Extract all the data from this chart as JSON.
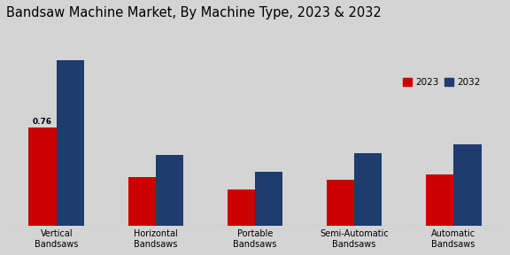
{
  "title": "Bandsaw Machine Market, By Machine Type, 2023 & 2032",
  "categories": [
    "Vertical\nBandsaws",
    "Horizontal\nBandsaws",
    "Portable\nBandsaws",
    "Semi-Automatic\nBandsaws",
    "Automatic\nBandsaws"
  ],
  "values_2023": [
    0.76,
    0.38,
    0.28,
    0.36,
    0.4
  ],
  "values_2032": [
    1.28,
    0.55,
    0.42,
    0.56,
    0.63
  ],
  "color_2023": "#cc0000",
  "color_2032": "#1f3c6e",
  "annotation_text": "0.76",
  "annotation_index": 0,
  "bar_width": 0.28,
  "background_color": "#d4d4d4",
  "legend_labels": [
    "2023",
    "2032"
  ],
  "title_fontsize": 10.5,
  "ylabel_fontsize": 7.5,
  "tick_fontsize": 7,
  "ylim_max": 1.55
}
